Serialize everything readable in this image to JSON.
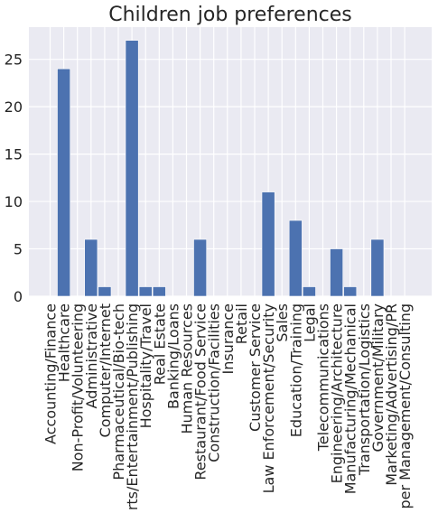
{
  "chart_data": {
    "type": "bar",
    "title": "Children job preferences",
    "xlabel": "",
    "ylabel": "",
    "ylim": [
      0,
      28.4
    ],
    "yticks": [
      0,
      5,
      10,
      15,
      20,
      25
    ],
    "grid": true,
    "bar_color": "#4c72b0",
    "background_color": "#eaeaf2",
    "categories": [
      "Accounting/Finance",
      "Healthcare",
      "Non-Profit/Volunteering",
      "Administrative",
      "Computer/Internet",
      "Pharmaceutical/Bio-tech",
      "Arts/Entertainment/Publishing",
      "Hospitality/Travel",
      "Real Estate",
      "Banking/Loans",
      "Human Resources",
      "Restaurant/Food Service",
      "Construction/Facilities",
      "Insurance",
      "Retail",
      "Customer Service",
      "Law Enforcement/Security",
      "Sales",
      "Education/Training",
      "Legal",
      "Telecommunications",
      "Engineering/Architecture",
      "Manufacturing/Mechanical",
      "Transportation/Logistics",
      "Government/Military",
      "Marketing/Advertising/PR",
      "Upper Management/Consulting"
    ],
    "values": [
      0,
      24,
      0,
      6,
      1,
      0,
      27,
      1,
      1,
      0,
      0,
      6,
      0,
      0,
      0,
      0,
      11,
      0,
      8,
      1,
      0,
      5,
      1,
      0,
      6,
      0,
      0
    ]
  }
}
